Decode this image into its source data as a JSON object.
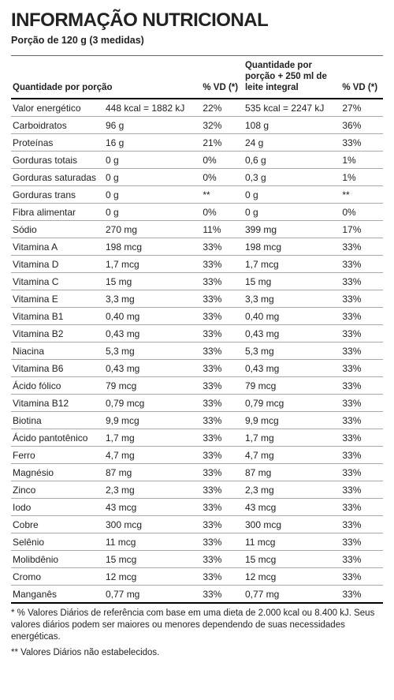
{
  "title": "INFORMAÇÃO NUTRICIONAL",
  "serving": "Porção de 120 g (3 medidas)",
  "headers": {
    "name": "Quantidade por porção",
    "dv1": "% VD (*)",
    "qty2": "Quantidade por porção + 250 ml de leite integral",
    "dv2": "% VD (*)"
  },
  "rows": [
    {
      "name": "Valor energético",
      "qty1": "448 kcal = 1882 kJ",
      "dv1": "22%",
      "qty2": "535 kcal = 2247 kJ",
      "dv2": "27%"
    },
    {
      "name": "Carboidratos",
      "qty1": "96 g",
      "dv1": "32%",
      "qty2": "108 g",
      "dv2": "36%"
    },
    {
      "name": "Proteínas",
      "qty1": "16 g",
      "dv1": "21%",
      "qty2": "24 g",
      "dv2": "33%"
    },
    {
      "name": "Gorduras totais",
      "qty1": "0 g",
      "dv1": "0%",
      "qty2": "0,6 g",
      "dv2": "1%"
    },
    {
      "name": "Gorduras saturadas",
      "qty1": "0 g",
      "dv1": "0%",
      "qty2": "0,3 g",
      "dv2": "1%"
    },
    {
      "name": "Gorduras trans",
      "qty1": "0 g",
      "dv1": "**",
      "qty2": "0 g",
      "dv2": "**"
    },
    {
      "name": "Fibra alimentar",
      "qty1": "0 g",
      "dv1": "0%",
      "qty2": "0 g",
      "dv2": "0%"
    },
    {
      "name": "Sódio",
      "qty1": "270 mg",
      "dv1": "11%",
      "qty2": "399 mg",
      "dv2": "17%"
    },
    {
      "name": "Vitamina A",
      "qty1": "198 mcg",
      "dv1": "33%",
      "qty2": "198 mcg",
      "dv2": "33%"
    },
    {
      "name": "Vitamina D",
      "qty1": "1,7 mcg",
      "dv1": "33%",
      "qty2": "1,7 mcg",
      "dv2": "33%"
    },
    {
      "name": "Vitamina C",
      "qty1": "15 mg",
      "dv1": "33%",
      "qty2": "15 mg",
      "dv2": "33%"
    },
    {
      "name": "Vitamina E",
      "qty1": "3,3 mg",
      "dv1": "33%",
      "qty2": "3,3 mg",
      "dv2": "33%"
    },
    {
      "name": "Vitamina B1",
      "qty1": "0,40 mg",
      "dv1": "33%",
      "qty2": "0,40 mg",
      "dv2": "33%"
    },
    {
      "name": "Vitamina B2",
      "qty1": "0,43 mg",
      "dv1": "33%",
      "qty2": "0,43 mg",
      "dv2": "33%"
    },
    {
      "name": "Niacina",
      "qty1": "5,3 mg",
      "dv1": "33%",
      "qty2": "5,3 mg",
      "dv2": "33%"
    },
    {
      "name": "Vitamina B6",
      "qty1": "0,43 mg",
      "dv1": "33%",
      "qty2": "0,43 mg",
      "dv2": "33%"
    },
    {
      "name": "Ácido fólico",
      "qty1": "79 mcg",
      "dv1": "33%",
      "qty2": "79 mcg",
      "dv2": "33%"
    },
    {
      "name": "Vitamina B12",
      "qty1": "0,79 mcg",
      "dv1": "33%",
      "qty2": "0,79 mcg",
      "dv2": "33%"
    },
    {
      "name": "Biotina",
      "qty1": "9,9 mcg",
      "dv1": "33%",
      "qty2": "9,9 mcg",
      "dv2": "33%"
    },
    {
      "name": "Ácido pantotênico",
      "qty1": "1,7 mg",
      "dv1": "33%",
      "qty2": "1,7 mg",
      "dv2": "33%"
    },
    {
      "name": "Ferro",
      "qty1": "4,7 mg",
      "dv1": "33%",
      "qty2": "4,7 mg",
      "dv2": "33%"
    },
    {
      "name": "Magnésio",
      "qty1": "87 mg",
      "dv1": "33%",
      "qty2": "87 mg",
      "dv2": "33%"
    },
    {
      "name": "Zinco",
      "qty1": "2,3 mg",
      "dv1": "33%",
      "qty2": "2,3 mg",
      "dv2": "33%"
    },
    {
      "name": "Iodo",
      "qty1": "43 mcg",
      "dv1": "33%",
      "qty2": "43 mcg",
      "dv2": "33%"
    },
    {
      "name": "Cobre",
      "qty1": "300 mcg",
      "dv1": "33%",
      "qty2": "300 mcg",
      "dv2": "33%"
    },
    {
      "name": "Selênio",
      "qty1": "11 mcg",
      "dv1": "33%",
      "qty2": "11 mcg",
      "dv2": "33%"
    },
    {
      "name": "Molibdênio",
      "qty1": "15 mcg",
      "dv1": "33%",
      "qty2": "15 mcg",
      "dv2": "33%"
    },
    {
      "name": "Cromo",
      "qty1": "12 mcg",
      "dv1": "33%",
      "qty2": "12 mcg",
      "dv2": "33%"
    },
    {
      "name": "Manganês",
      "qty1": "0,77 mg",
      "dv1": "33%",
      "qty2": "0,77 mg",
      "dv2": "33%"
    }
  ],
  "footnote1": "* % Valores Diários de referência com base em uma dieta de 2.000 kcal ou 8.400 kJ. Seus valores diários podem ser maiores ou menores dependendo de suas necessidades energéticas.",
  "footnote2": "** Valores Diários não estabelecidos."
}
